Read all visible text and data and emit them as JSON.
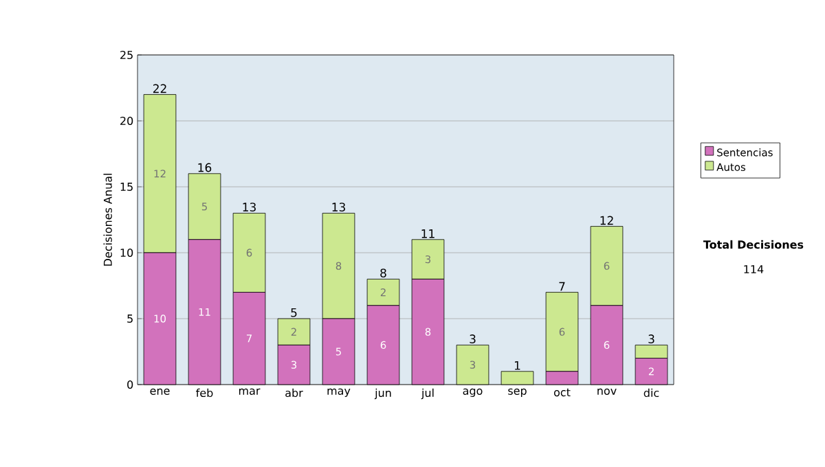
{
  "chart_data": {
    "type": "bar",
    "stacked": true,
    "ylabel": "Decisiones Anual",
    "categories": [
      "ene",
      "feb",
      "mar",
      "abr",
      "may",
      "jun",
      "jul",
      "ago",
      "sep",
      "oct",
      "nov",
      "dic"
    ],
    "series": [
      {
        "name": "Sentencias",
        "color": "#d272bc",
        "values": [
          10,
          11,
          7,
          3,
          5,
          6,
          8,
          0,
          0,
          1,
          6,
          2
        ],
        "value_labels": [
          "10",
          "11",
          "7",
          "3",
          "5",
          "6",
          "8",
          null,
          null,
          null,
          "6",
          "2"
        ]
      },
      {
        "name": "Autos",
        "color": "#cce890",
        "values": [
          12,
          5,
          6,
          2,
          8,
          2,
          3,
          3,
          1,
          6,
          6,
          1
        ],
        "value_labels": [
          "12",
          "5",
          "6",
          "2",
          "8",
          "2",
          "3",
          "3",
          null,
          "6",
          "6",
          null
        ]
      }
    ],
    "totals": [
      "22",
      "16",
      "13",
      "5",
      "13",
      "8",
      "11",
      "3",
      "1",
      "7",
      "12",
      "3"
    ],
    "ylim": [
      0,
      25
    ],
    "yticks": [
      0,
      5,
      10,
      15,
      20,
      25
    ],
    "grid": "y",
    "legend": "right",
    "annotations": [
      "Total Decisiones",
      "114"
    ]
  }
}
